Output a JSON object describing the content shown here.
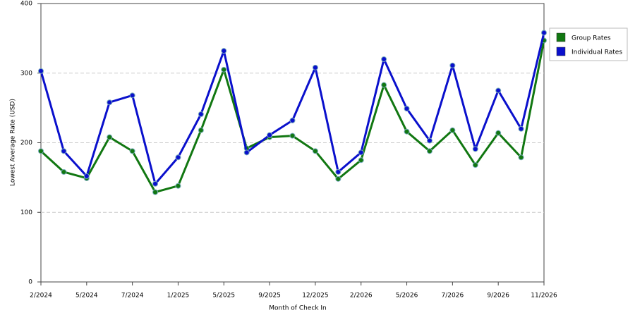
{
  "chart_data": {
    "type": "line",
    "x_label": "Month of Check In",
    "y_label": "Lowest Average Rate (USD)",
    "categories": [
      "2/2024",
      null,
      "5/2024",
      null,
      "7/2024",
      null,
      "1/2025",
      null,
      "5/2025",
      null,
      "9/2025",
      null,
      "12/2025",
      null,
      "2/2026",
      null,
      "5/2026",
      null,
      "7/2026",
      null,
      "9/2026",
      null,
      "11/2026"
    ],
    "series": [
      {
        "name": "Group Rates",
        "color": "#117711",
        "values": [
          188,
          158,
          149,
          208,
          188,
          129,
          138,
          218,
          305,
          192,
          208,
          210,
          188,
          148,
          175,
          283,
          216,
          188,
          218,
          168,
          214,
          179,
          347
        ]
      },
      {
        "name": "Individual Rates",
        "color": "#0a10cc",
        "values": [
          303,
          188,
          152,
          258,
          268,
          141,
          179,
          241,
          332,
          186,
          211,
          232,
          308,
          158,
          186,
          320,
          249,
          203,
          311,
          191,
          275,
          220,
          358
        ]
      }
    ],
    "ylim": [
      0,
      400
    ],
    "yticks": [
      0,
      100,
      200,
      300,
      400
    ],
    "grid": true,
    "legend": "right"
  }
}
